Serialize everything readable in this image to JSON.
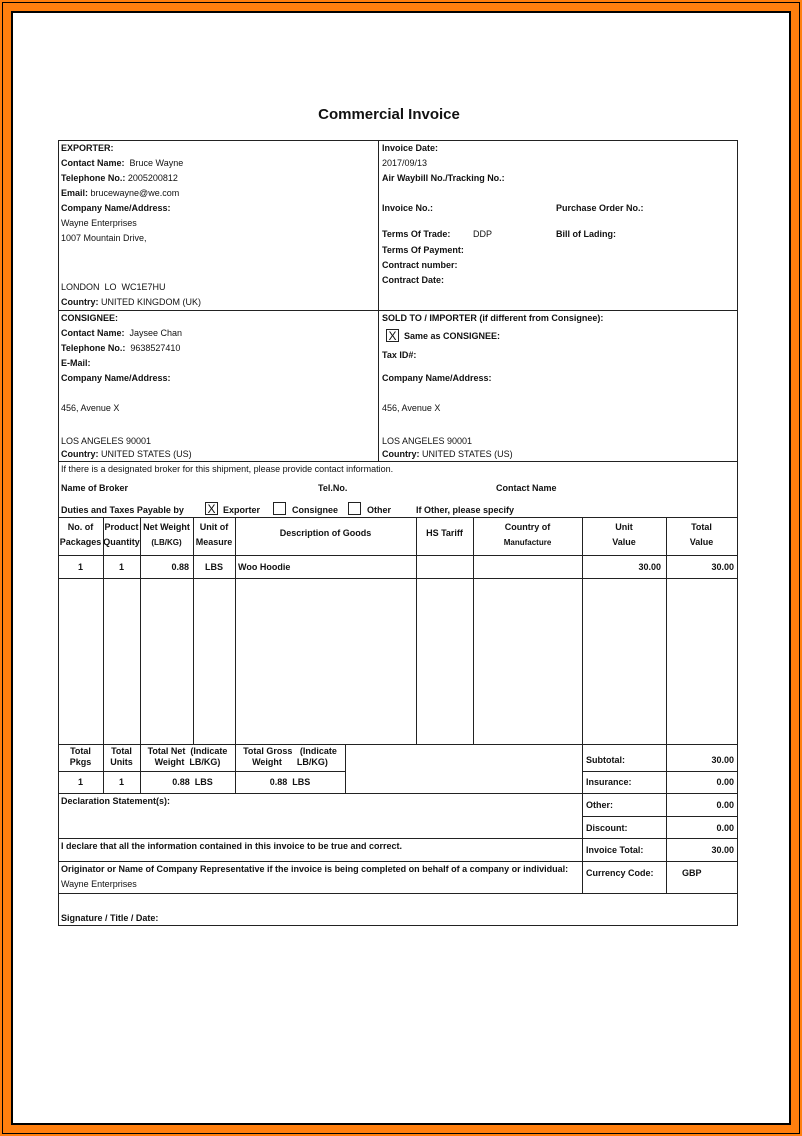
{
  "title": "Commercial Invoice",
  "exporter": {
    "heading": "EXPORTER:",
    "contact_label": "Contact Name:",
    "contact": "Bruce Wayne",
    "phone_label": "Telephone No.:",
    "phone": "2005200812",
    "email_label": "Email:",
    "email": "brucewayne@we.com",
    "company_label": "Company Name/Address:",
    "company": "Wayne Enterprises",
    "address1": "1007 Mountain Drive,",
    "city": "LONDON  LO  WC1E7HU",
    "country_label": "Country:",
    "country": "UNITED KINGDOM (UK)"
  },
  "invoice_info": {
    "date_label": "Invoice Date:",
    "date": "2017/09/13",
    "waybill_label": "Air Waybill No./Tracking No.:",
    "invoice_no_label": "Invoice No.:",
    "po_label": "Purchase Order No.:",
    "terms_trade_label": "Terms Of Trade:",
    "terms_trade": "DDP",
    "bill_label": "Bill of Lading:",
    "terms_payment_label": "Terms Of Payment:",
    "contract_no_label": "Contract number:",
    "contract_date_label": "Contract Date:"
  },
  "consignee": {
    "heading": "CONSIGNEE:",
    "contact_label": "Contact Name:",
    "contact": "Jaysee Chan",
    "phone_label": "Telephone No.:",
    "phone": "9638527410",
    "email_label": "E-Mail:",
    "company_label": "Company Name/Address:",
    "address1": "456, Avenue X",
    "city": "LOS ANGELES 90001",
    "country_label": "Country:",
    "country": "UNITED STATES (US)"
  },
  "sold_to": {
    "heading": "SOLD TO / IMPORTER (if different from Consignee):",
    "same_mark": "X",
    "same_label": "Same as CONSIGNEE:",
    "tax_label": "Tax ID#:",
    "company_label": "Company Name/Address:",
    "address1": "456, Avenue X",
    "city": "LOS ANGELES 90001",
    "country_label": "Country:",
    "country": "UNITED STATES (US)"
  },
  "broker": {
    "note": "If there is a designated broker for this shipment, please provide contact information.",
    "name_label": "Name of Broker",
    "tel_label": "Tel.No.",
    "contact_label": "Contact Name",
    "duties_label": "Duties and Taxes Payable by",
    "exporter_mark": "X",
    "exporter_label": "Exporter",
    "consignee_label": "Consignee",
    "other_label": "Other",
    "other_specify": "If Other, please specify"
  },
  "items_table": {
    "headers": [
      [
        "No. of",
        "Packages"
      ],
      [
        "Product",
        "Quantity"
      ],
      [
        "Net Weight",
        "(LB/KG)"
      ],
      [
        "Unit of",
        "Measure"
      ],
      [
        "Description of Goods",
        ""
      ],
      [
        "HS Tariff",
        ""
      ],
      [
        "Country of",
        "Manufacture"
      ],
      [
        "Unit",
        "Value"
      ],
      [
        "Total",
        "Value"
      ]
    ],
    "rows": [
      {
        "packages": "1",
        "quantity": "1",
        "net_weight": "0.88",
        "unit": "LBS",
        "description": "Woo Hoodie",
        "hs": "",
        "country": "",
        "unit_value": "30.00",
        "total_value": "30.00"
      }
    ]
  },
  "totals": {
    "pkgs_label": [
      "Total",
      "Pkgs"
    ],
    "units_label": [
      "Total",
      "Units"
    ],
    "net_label": [
      "Total Net  (Indicate",
      "Weight  LB/KG)"
    ],
    "gross_label": [
      "Total Gross   (Indicate",
      "Weight      LB/KG)"
    ],
    "pkgs": "1",
    "units": "1",
    "net": "0.88  LBS",
    "gross": "0.88  LBS"
  },
  "summary": {
    "subtotal_label": "Subtotal:",
    "subtotal": "30.00",
    "insurance_label": "Insurance:",
    "insurance": "0.00",
    "other_label": "Other:",
    "other": "0.00",
    "discount_label": "Discount:",
    "discount": "0.00",
    "total_label": "Invoice Total:",
    "total": "30.00",
    "currency_label": "Currency Code:",
    "currency": "GBP"
  },
  "footer": {
    "declaration_label": "Declaration Statement(s):",
    "declare_text": "I declare that all the information contained in this invoice to be true and correct.",
    "originator_label": "Originator or Name of Company Representative if the invoice is being completed on behalf of a company or individual:",
    "originator": "Wayne Enterprises",
    "signature_label": "Signature / Title / Date:"
  },
  "colors": {
    "frame": "#ff7f0e"
  }
}
